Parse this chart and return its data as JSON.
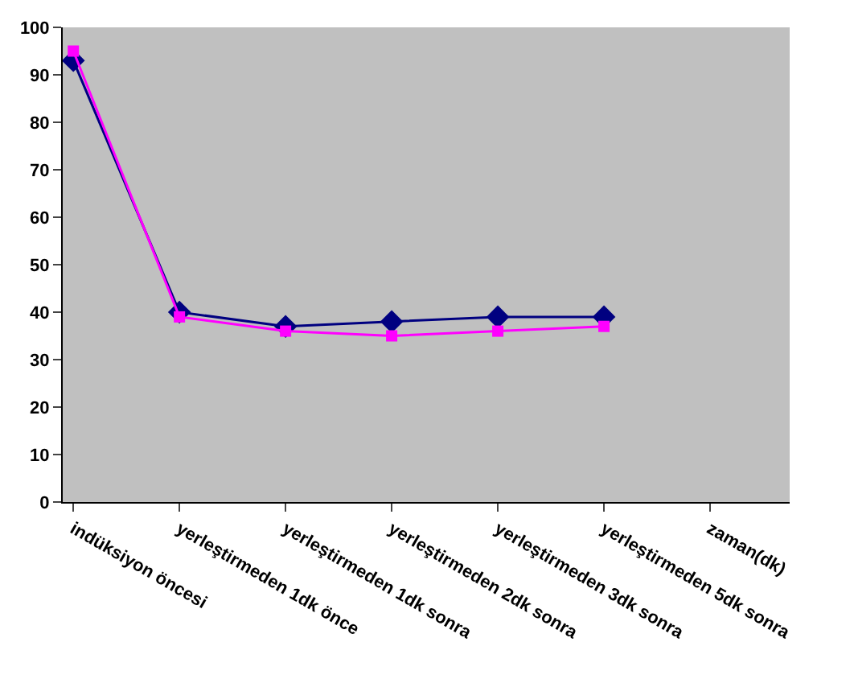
{
  "chart_data": {
    "type": "line",
    "categories": [
      "indüksiyon öncesi",
      "yerleştirmeden 1dk önce",
      "yerleştirmeden 1dk sonra",
      "yerleştirmeden 2dk sonra",
      "yerleştirmeden 3dk sonra",
      "yerleştirmeden 5dk sonra",
      "zaman(dk)"
    ],
    "series": [
      {
        "color": "#000080",
        "marker": "diamond",
        "values": [
          93,
          40,
          37,
          38,
          39,
          39,
          null
        ]
      },
      {
        "color": "#ff00ff",
        "marker": "square",
        "values": [
          95,
          39,
          36,
          35,
          36,
          37,
          null
        ]
      }
    ],
    "ylim": [
      0,
      100
    ],
    "yticks": [
      0,
      10,
      20,
      30,
      40,
      50,
      60,
      70,
      80,
      90,
      100
    ],
    "grid": false,
    "line_style": "solid"
  }
}
